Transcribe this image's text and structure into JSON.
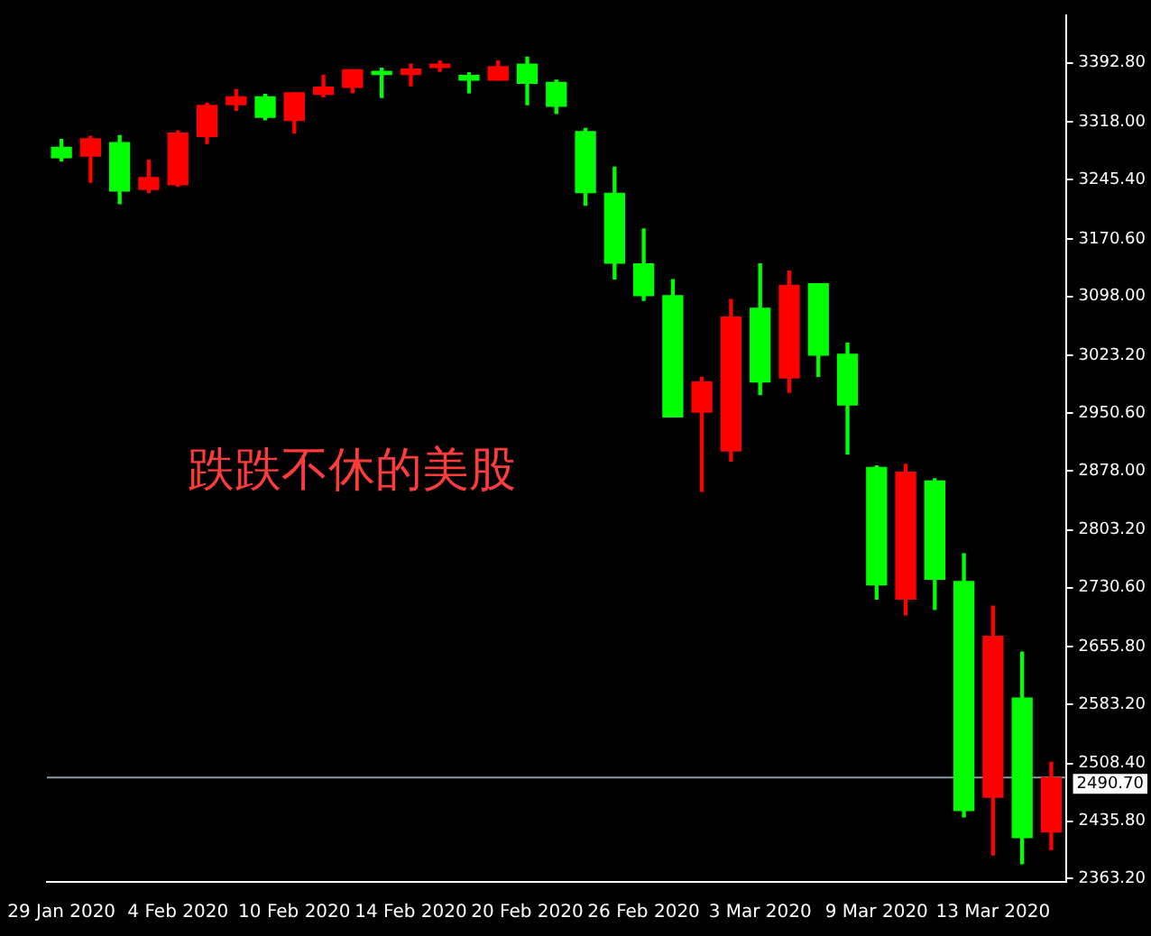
{
  "chart_data": {
    "type": "candlestick",
    "categories": [
      "29 Jan 2020",
      null,
      null,
      null,
      "4 Feb 2020",
      null,
      null,
      null,
      "10 Feb 2020",
      null,
      null,
      null,
      "14 Feb 2020",
      null,
      null,
      null,
      "20 Feb 2020",
      null,
      null,
      null,
      "26 Feb 2020",
      null,
      null,
      null,
      "3 Mar 2020",
      null,
      null,
      null,
      "9 Mar 2020",
      null,
      null,
      null,
      "13 Mar 2020",
      null,
      null
    ],
    "ohlc": [
      [
        3286,
        3296,
        3269,
        3273
      ],
      [
        3275,
        3300,
        3242,
        3297
      ],
      [
        3292,
        3301,
        3215,
        3231
      ],
      [
        3233,
        3270,
        3229,
        3248
      ],
      [
        3239,
        3307,
        3237,
        3304
      ],
      [
        3300,
        3342,
        3291,
        3339
      ],
      [
        3340,
        3359,
        3333,
        3350
      ],
      [
        3350,
        3353,
        3321,
        3324
      ],
      [
        3320,
        3355,
        3304,
        3355
      ],
      [
        3353,
        3377,
        3350,
        3362
      ],
      [
        3362,
        3384,
        3355,
        3384
      ],
      [
        3382,
        3386,
        3349,
        3378
      ],
      [
        3378,
        3391,
        3364,
        3385
      ],
      [
        3387,
        3395,
        3382,
        3391
      ],
      [
        3377,
        3380,
        3355,
        3371
      ],
      [
        3371,
        3395,
        3371,
        3388
      ],
      [
        3391,
        3400,
        3340,
        3367
      ],
      [
        3368,
        3371,
        3329,
        3338
      ],
      [
        3306,
        3310,
        3213,
        3229
      ],
      [
        3228,
        3261,
        3120,
        3140
      ],
      [
        3139,
        3183,
        3093,
        3099
      ],
      [
        3099,
        3119,
        2946,
        2946
      ],
      [
        2952,
        2996,
        2852,
        2990
      ],
      [
        2903,
        3094,
        2890,
        3072
      ],
      [
        3083,
        3139,
        2974,
        2990
      ],
      [
        2995,
        3130,
        2977,
        3112
      ],
      [
        3114,
        3114,
        2997,
        3024
      ],
      [
        3025,
        3039,
        2899,
        2961
      ],
      [
        2882,
        2884,
        2716,
        2734
      ],
      [
        2716,
        2886,
        2696,
        2876
      ],
      [
        2865,
        2868,
        2703,
        2741
      ],
      [
        2738,
        2773,
        2441,
        2449
      ],
      [
        2466,
        2707,
        2393,
        2669
      ],
      [
        2591,
        2649,
        2382,
        2415
      ],
      [
        2422,
        2510,
        2400,
        2490.7
      ]
    ],
    "colors": [
      "#00ff00",
      "#ff0000",
      "#00ff00",
      "#ff0000",
      "#ff0000",
      "#ff0000",
      "#ff0000",
      "#00ff00",
      "#ff0000",
      "#ff0000",
      "#ff0000",
      "#00ff00",
      "#ff0000",
      "#ff0000",
      "#00ff00",
      "#ff0000",
      "#00ff00",
      "#00ff00",
      "#00ff00",
      "#00ff00",
      "#00ff00",
      "#00ff00",
      "#ff0000",
      "#ff0000",
      "#00ff00",
      "#ff0000",
      "#00ff00",
      "#00ff00",
      "#00ff00",
      "#ff0000",
      "#00ff00",
      "#00ff00",
      "#ff0000",
      "#00ff00",
      "#ff0000"
    ],
    "ylim": [
      2359,
      3453
    ],
    "yticks": [
      {
        "value": 3392.8,
        "label": "3392.80"
      },
      {
        "value": 3318,
        "label": "3318.00"
      },
      {
        "value": 3245.4,
        "label": "3245.40"
      },
      {
        "value": 3170.6,
        "label": "3170.60"
      },
      {
        "value": 3098,
        "label": "3098.00"
      },
      {
        "value": 3023.2,
        "label": "3023.20"
      },
      {
        "value": 2950.6,
        "label": "2950.60"
      },
      {
        "value": 2878,
        "label": "2878.00"
      },
      {
        "value": 2803.2,
        "label": "2803.20"
      },
      {
        "value": 2730.6,
        "label": "2730.60"
      },
      {
        "value": 2655.8,
        "label": "2655.80"
      },
      {
        "value": 2583.2,
        "label": "2583.20"
      },
      {
        "value": 2508.4,
        "label": "2508.40"
      },
      {
        "value": 2435.8,
        "label": "2435.80"
      },
      {
        "value": 2363.2,
        "label": "2363.20"
      }
    ],
    "ref_lines": [
      {
        "axis": "y",
        "value": 2490.7,
        "label": "2490.70",
        "color": "#8a9aa8"
      }
    ],
    "annotations": [
      "跌跌不休的美股"
    ],
    "grid": false,
    "legend": false
  }
}
